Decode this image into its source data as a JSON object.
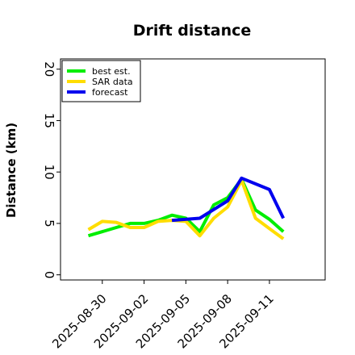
{
  "chart_data": {
    "type": "line",
    "title": "Drift distance",
    "xlabel": "",
    "ylabel": "Distance (km)",
    "x_tick_labels": [
      "2025-08-30",
      "2025-09-02",
      "2025-09-05",
      "2025-09-08",
      "2025-09-11"
    ],
    "xlim": [
      "2025-08-27",
      "2025-09-15"
    ],
    "ylim": [
      -0.5,
      21
    ],
    "y_ticks": [
      0,
      5,
      10,
      15,
      20
    ],
    "grid": false,
    "legend_position": "top-left",
    "series": [
      {
        "name": "best est.",
        "color": "#00ee00",
        "x": [
          "2025-08-29",
          "2025-08-31",
          "2025-09-01",
          "2025-09-02",
          "2025-09-03",
          "2025-09-04",
          "2025-09-05",
          "2025-09-06",
          "2025-09-07",
          "2025-09-08",
          "2025-09-09",
          "2025-09-10",
          "2025-09-11",
          "2025-09-12"
        ],
        "values": [
          3.8,
          4.6,
          5.0,
          5.0,
          5.3,
          5.8,
          5.5,
          4.2,
          6.8,
          7.5,
          9.3,
          6.3,
          5.4,
          4.2
        ]
      },
      {
        "name": "SAR data",
        "color": "#ffdd00",
        "x": [
          "2025-08-29",
          "2025-08-30",
          "2025-08-31",
          "2025-09-01",
          "2025-09-02",
          "2025-09-03",
          "2025-09-04",
          "2025-09-05",
          "2025-09-06",
          "2025-09-07",
          "2025-09-08",
          "2025-09-09",
          "2025-09-10",
          "2025-09-11",
          "2025-09-12"
        ],
        "values": [
          4.4,
          5.2,
          5.1,
          4.6,
          4.6,
          5.2,
          5.3,
          5.2,
          3.8,
          5.5,
          6.6,
          9.2,
          5.5,
          4.5,
          3.5
        ]
      },
      {
        "name": "forecast",
        "color": "#0000ee",
        "x": [
          "2025-09-04",
          "2025-09-06",
          "2025-09-08",
          "2025-09-09",
          "2025-09-11",
          "2025-09-12"
        ],
        "values": [
          5.3,
          5.5,
          7.2,
          9.4,
          8.3,
          5.5
        ]
      }
    ]
  }
}
